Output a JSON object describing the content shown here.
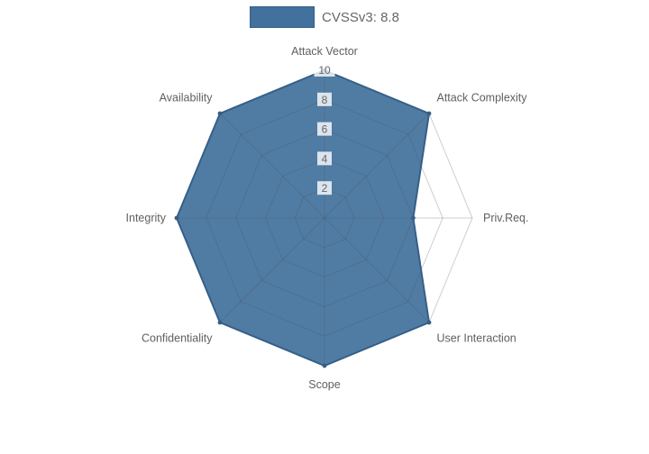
{
  "legend": {
    "label": "CVSSv3: 8.8"
  },
  "chart_data": {
    "type": "radar",
    "title": "",
    "categories": [
      "Attack Vector",
      "Attack Complexity",
      "Priv.Req.",
      "User Interaction",
      "Scope",
      "Confidentiality",
      "Integrity",
      "Availability"
    ],
    "series": [
      {
        "name": "CVSSv3: 8.8",
        "values": [
          10,
          10,
          6,
          10,
          10,
          10,
          10,
          10
        ]
      }
    ],
    "ticks": [
      2,
      4,
      6,
      8,
      10
    ],
    "rmax": 10,
    "rmin": 0,
    "grid": true,
    "legend_position": "top",
    "fill_color": "#41719c",
    "fill_opacity": 0.92,
    "border_color": "#365f87",
    "grid_color": "rgba(80,80,80,0.28)",
    "tick_color": "#666666",
    "label_color": "#5f5f5f",
    "tick_backdrop_color": "rgba(255,255,255,0.8)"
  }
}
